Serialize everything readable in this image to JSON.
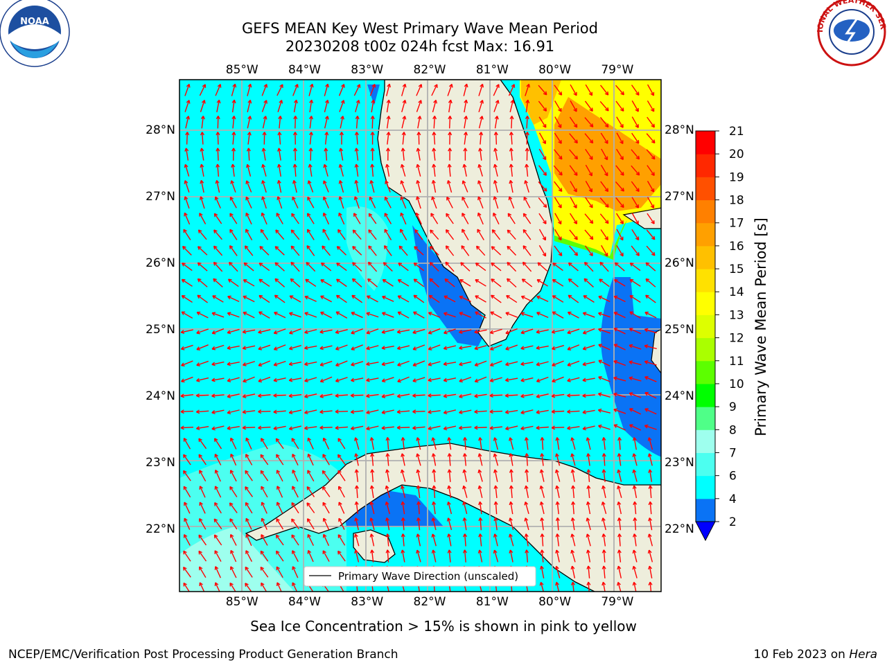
{
  "title": {
    "line1": "GEFS MEAN Key West Primary Wave Mean Period",
    "line2": "20230208 t00z 024h fcst   Max: 16.91"
  },
  "logos": {
    "left": {
      "icon": "noaa-logo-icon",
      "text": "NOAA"
    },
    "right": {
      "icon": "national-weather-service-logo-icon",
      "ring_text": "NATIONAL WEATHER SERVICE"
    }
  },
  "map": {
    "lon_labels": [
      "85°W",
      "84°W",
      "83°W",
      "82°W",
      "81°W",
      "80°W",
      "79°W"
    ],
    "lat_labels": [
      "28°N",
      "27°N",
      "26°N",
      "25°N",
      "24°N",
      "23°N",
      "22°N"
    ],
    "lon_values": [
      -85,
      -84,
      -83,
      -82,
      -81,
      -80,
      -79
    ],
    "lat_values": [
      28,
      27,
      26,
      25,
      24,
      23,
      22
    ],
    "extent": {
      "lon_min": -86,
      "lon_max": -78.3,
      "lat_min": 21.05,
      "lat_max": 28.75
    },
    "land_color": "#eeeedc",
    "arrow_color": "#ff0000",
    "legend_label": "Primary Wave Direction (unscaled)"
  },
  "colorbar": {
    "label": "Primary Wave Mean Period [s]",
    "ticks": [
      "2",
      "4",
      "6",
      "7",
      "8",
      "9",
      "10",
      "11",
      "12",
      "13",
      "14",
      "15",
      "16",
      "17",
      "18",
      "19",
      "20",
      "21"
    ],
    "colors": [
      "#0a73f5",
      "#00ffff",
      "#4cfff0",
      "#9effee",
      "#4fff88",
      "#00ff00",
      "#5cff00",
      "#aaff00",
      "#ddff00",
      "#ffff00",
      "#ffe100",
      "#ffc000",
      "#ffa000",
      "#ff8000",
      "#ff5000",
      "#ff2800",
      "#ff0000"
    ],
    "under_color": "#0000ff"
  },
  "note": "Sea Ice Concentration > 15% is shown in pink to yellow",
  "footer": {
    "left": "NCEP/EMC/Verification Post Processing Product Generation Branch",
    "right_date": "10 Feb 2023 on ",
    "right_host": "Hera"
  }
}
